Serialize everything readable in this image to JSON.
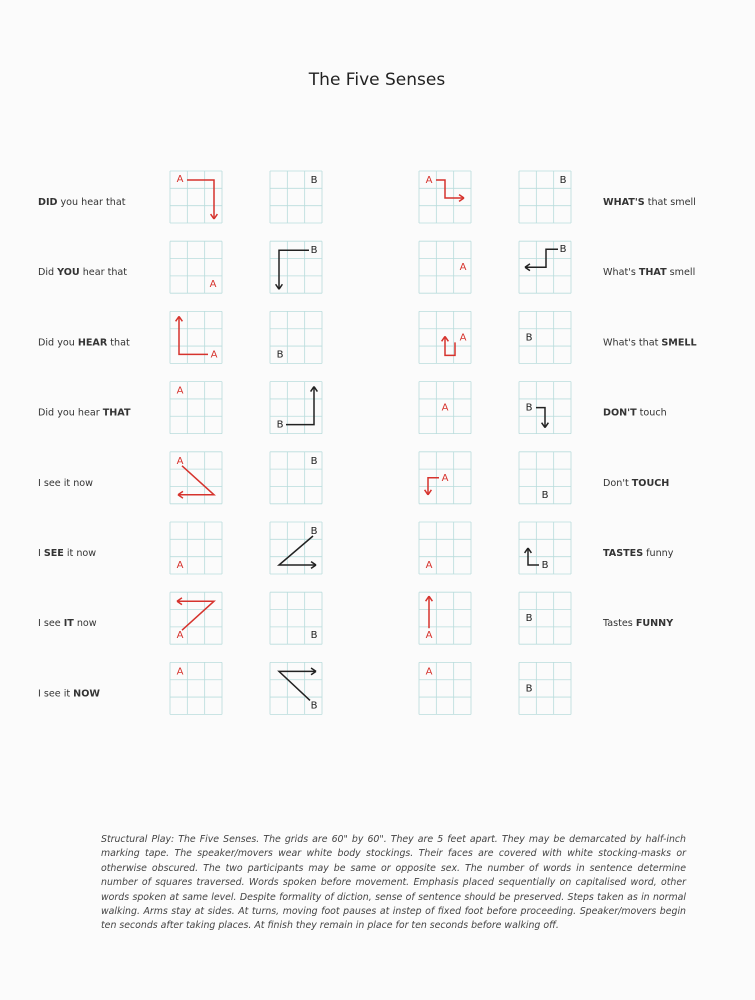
{
  "title": "The Five Senses",
  "rows": [
    {
      "left": [
        {
          "text": "DID",
          "bold": true
        },
        {
          "text": "you hear that",
          "bold": false
        }
      ],
      "right": [
        {
          "text": "WHAT'S",
          "bold": true
        },
        {
          "text": "that smell",
          "bold": false
        }
      ],
      "grids": [
        "A",
        "B",
        "A",
        "B"
      ]
    },
    {
      "left": [
        {
          "text": "Did",
          "bold": false
        },
        {
          "text": "YOU",
          "bold": true
        },
        {
          "text": "hear that",
          "bold": false
        }
      ],
      "right": [
        {
          "text": "What's",
          "bold": false
        },
        {
          "text": "THAT",
          "bold": true
        },
        {
          "text": "smell",
          "bold": false
        }
      ],
      "grids": [
        "A",
        "B",
        "A",
        "B"
      ]
    },
    {
      "left": [
        {
          "text": "Did you",
          "bold": false
        },
        {
          "text": "HEAR",
          "bold": true
        },
        {
          "text": "that",
          "bold": false
        }
      ],
      "right": [
        {
          "text": "What's that",
          "bold": false
        },
        {
          "text": "SMELL",
          "bold": true
        }
      ],
      "grids": [
        "A",
        "B",
        "A",
        "B"
      ]
    },
    {
      "left": [
        {
          "text": "Did you hear",
          "bold": false
        },
        {
          "text": "THAT",
          "bold": true
        }
      ],
      "right": [
        {
          "text": "DON'T",
          "bold": true
        },
        {
          "text": "touch",
          "bold": false
        }
      ],
      "grids": [
        "A",
        "B",
        "A",
        "B"
      ]
    },
    {
      "left": [
        {
          "text": "I see it now",
          "bold": false
        }
      ],
      "right": [
        {
          "text": "Don't",
          "bold": false
        },
        {
          "text": "TOUCH",
          "bold": true
        }
      ],
      "grids": [
        "A",
        "B",
        "A",
        "B"
      ]
    },
    {
      "left": [
        {
          "text": "I",
          "bold": false
        },
        {
          "text": "SEE",
          "bold": true
        },
        {
          "text": "it now",
          "bold": false
        }
      ],
      "right": [
        {
          "text": "TASTES",
          "bold": true
        },
        {
          "text": "funny",
          "bold": false
        }
      ],
      "grids": [
        "A",
        "B",
        "A",
        "B"
      ]
    },
    {
      "left": [
        {
          "text": "I see",
          "bold": false
        },
        {
          "text": "IT",
          "bold": true
        },
        {
          "text": "now",
          "bold": false
        }
      ],
      "right": [
        {
          "text": "Tastes",
          "bold": false
        },
        {
          "text": "FUNNY",
          "bold": true
        }
      ],
      "grids": [
        "A",
        "B",
        "A",
        "B"
      ]
    },
    {
      "left": [
        {
          "text": "I see it",
          "bold": false
        },
        {
          "text": "NOW",
          "bold": true
        }
      ],
      "grids": [
        "A",
        "B",
        "A",
        "B"
      ]
    }
  ],
  "note": "Structural Play: The Five Senses. The grids are 60\" by 60\". They are 5 feet apart. They may be demarcated by half-inch marking tape. The speaker/movers wear white body stockings. Their faces are covered with white stocking-masks or otherwise obscured. The two participants may be same or opposite sex. The number of words in sentence determine number of squares traversed. Words spoken before movement. Emphasis placed sequentially on capitalised word, other words spoken at same level. Despite formality of diction, sense of sentence should be preserved. Steps taken as in normal walking. Arms stay at sides. At turns, moving foot pauses at instep of fixed foot before proceeding. Speaker/movers begin ten seconds after taking places. At finish they remain in place for ten seconds before walking off."
}
